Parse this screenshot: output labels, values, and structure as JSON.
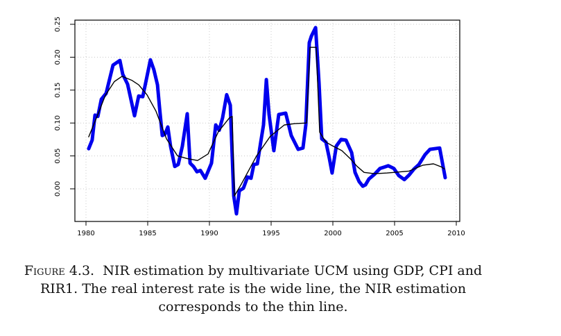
{
  "chart_data": {
    "type": "line",
    "title": "",
    "xlabel": "",
    "ylabel": "",
    "xlim": [
      1979.1,
      2010.4
    ],
    "ylim": [
      -0.05,
      0.26
    ],
    "grid": true,
    "x_ticks": [
      1980,
      1985,
      1990,
      1995,
      2000,
      2005,
      2010
    ],
    "x_tick_labels": [
      "1980",
      "1985",
      "1990",
      "1995",
      "2000",
      "2005",
      "2010"
    ],
    "y_ticks": [
      0.0,
      0.05,
      0.1,
      0.15,
      0.2,
      0.25
    ],
    "y_tick_labels": [
      "0.00",
      "0.05",
      "0.10",
      "0.15",
      "0.20",
      "0.25"
    ],
    "series": [
      {
        "name": "Real interest rate (wide line)",
        "color": "#0000ee",
        "style": "wide",
        "x": [
          1980.22,
          1980.5,
          1980.73,
          1980.96,
          1981.24,
          1981.63,
          1982.19,
          1982.75,
          1982.98,
          1983.37,
          1983.93,
          1984.27,
          1984.6,
          1985.22,
          1985.5,
          1985.79,
          1985.96,
          1986.18,
          1986.4,
          1986.63,
          1986.85,
          1987.19,
          1987.47,
          1987.81,
          1988.2,
          1988.43,
          1988.71,
          1988.99,
          1989.27,
          1989.66,
          1990.17,
          1990.51,
          1990.79,
          1991.07,
          1991.4,
          1991.69,
          1991.97,
          1992.19,
          1992.42,
          1992.75,
          1993.09,
          1993.37,
          1993.6,
          1993.88,
          1994.16,
          1994.38,
          1994.61,
          1994.83,
          1995.22,
          1995.62,
          1996.18,
          1996.63,
          1997.19,
          1997.58,
          1997.81,
          1998.09,
          1998.26,
          1998.6,
          1998.88,
          1999.1,
          1999.44,
          1999.72,
          1999.94,
          2000.28,
          2000.67,
          2001.06,
          2001.52,
          2001.8,
          2002.13,
          2002.42,
          2002.64,
          2002.92,
          2003.37,
          2003.82,
          2004.16,
          2004.49,
          2004.94,
          2005.34,
          2005.79,
          2006.18,
          2006.57,
          2006.97,
          2007.47,
          2007.87,
          2008.65,
          2009.1
        ],
        "y": [
          0.061,
          0.074,
          0.112,
          0.11,
          0.136,
          0.145,
          0.188,
          0.195,
          0.174,
          0.159,
          0.111,
          0.141,
          0.14,
          0.196,
          0.181,
          0.158,
          0.123,
          0.081,
          0.083,
          0.094,
          0.065,
          0.034,
          0.037,
          0.065,
          0.114,
          0.039,
          0.034,
          0.026,
          0.028,
          0.016,
          0.039,
          0.097,
          0.089,
          0.108,
          0.143,
          0.127,
          -0.011,
          -0.038,
          -0.003,
          0.001,
          0.018,
          0.016,
          0.037,
          0.038,
          0.071,
          0.097,
          0.166,
          0.113,
          0.058,
          0.113,
          0.115,
          0.081,
          0.06,
          0.062,
          0.097,
          0.222,
          0.232,
          0.245,
          0.16,
          0.076,
          0.071,
          0.046,
          0.024,
          0.065,
          0.075,
          0.074,
          0.055,
          0.025,
          0.011,
          0.004,
          0.006,
          0.015,
          0.022,
          0.031,
          0.033,
          0.035,
          0.031,
          0.02,
          0.014,
          0.021,
          0.03,
          0.037,
          0.052,
          0.06,
          0.062,
          0.017
        ]
      },
      {
        "name": "NIR estimation (thin line)",
        "color": "#000000",
        "style": "thin",
        "x": [
          1980.22,
          1980.9,
          1981.57,
          1982.3,
          1982.92,
          1983.7,
          1984.27,
          1984.94,
          1985.67,
          1986.52,
          1987.42,
          1988.2,
          1989.04,
          1989.89,
          1990.73,
          1991.63,
          1991.85,
          1992.02,
          1992.58,
          1993.82,
          1994.94,
          1996.07,
          1996.91,
          1997.87,
          1998.15,
          1998.65,
          1998.93,
          1999.44,
          2000.0,
          2000.73,
          2001.4,
          2001.97,
          2002.53,
          2003.37,
          2004.38,
          2006.18,
          2007.3,
          2008.15,
          2008.82,
          2009.04
        ],
        "y": [
          0.079,
          0.11,
          0.142,
          0.163,
          0.171,
          0.165,
          0.158,
          0.143,
          0.118,
          0.076,
          0.05,
          0.046,
          0.043,
          0.053,
          0.087,
          0.108,
          0.11,
          -0.011,
          0.007,
          0.05,
          0.08,
          0.097,
          0.099,
          0.1,
          0.215,
          0.215,
          0.086,
          0.071,
          0.065,
          0.058,
          0.046,
          0.034,
          0.025,
          0.023,
          0.024,
          0.027,
          0.036,
          0.038,
          0.033,
          0.03
        ]
      }
    ]
  },
  "caption": {
    "figure_label": "Figure",
    "figure_number": "4.3.",
    "line1_rest": "NIR estimation by multivariate UCM using GDP, CPI and",
    "line2": "RIR1. The real interest rate is the wide line, the NIR estimation",
    "line3": "corresponds to the thin line."
  }
}
